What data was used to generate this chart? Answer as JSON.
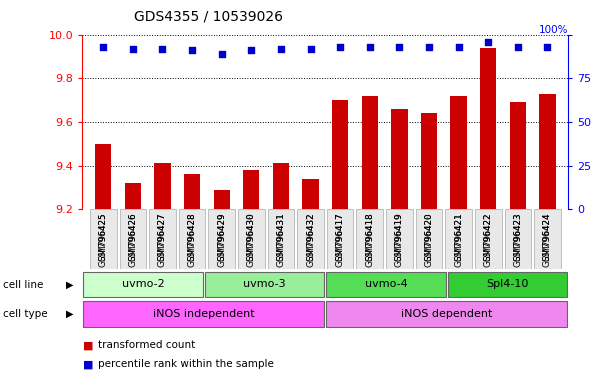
{
  "title": "GDS4355 / 10539026",
  "samples": [
    "GSM796425",
    "GSM796426",
    "GSM796427",
    "GSM796428",
    "GSM796429",
    "GSM796430",
    "GSM796431",
    "GSM796432",
    "GSM796417",
    "GSM796418",
    "GSM796419",
    "GSM796420",
    "GSM796421",
    "GSM796422",
    "GSM796423",
    "GSM796424"
  ],
  "transformed_count": [
    9.5,
    9.32,
    9.41,
    9.36,
    9.29,
    9.38,
    9.41,
    9.34,
    9.7,
    9.72,
    9.66,
    9.64,
    9.72,
    9.94,
    9.69,
    9.73
  ],
  "percentile_rank": [
    93,
    92,
    92,
    91,
    89,
    91,
    92,
    92,
    93,
    93,
    93,
    93,
    93,
    96,
    93,
    93
  ],
  "ylim_left": [
    9.2,
    10.0
  ],
  "ylim_right": [
    0,
    100
  ],
  "yticks_left": [
    9.2,
    9.4,
    9.6,
    9.8,
    10.0
  ],
  "yticks_right": [
    0,
    25,
    50,
    75,
    100
  ],
  "bar_color": "#cc0000",
  "dot_color": "#0000cc",
  "cell_lines": [
    {
      "label": "uvmo-2",
      "start": 0,
      "end": 4,
      "color": "#ccffcc"
    },
    {
      "label": "uvmo-3",
      "start": 4,
      "end": 8,
      "color": "#99ee99"
    },
    {
      "label": "uvmo-4",
      "start": 8,
      "end": 12,
      "color": "#55dd55"
    },
    {
      "label": "Spl4-10",
      "start": 12,
      "end": 16,
      "color": "#33cc33"
    }
  ],
  "cell_types": [
    {
      "label": "iNOS independent",
      "start": 0,
      "end": 8,
      "color": "#ff66ff"
    },
    {
      "label": "iNOS dependent",
      "start": 8,
      "end": 16,
      "color": "#ee88ee"
    }
  ],
  "bar_width": 0.55,
  "dot_size": 25,
  "background_color": "#ffffff"
}
